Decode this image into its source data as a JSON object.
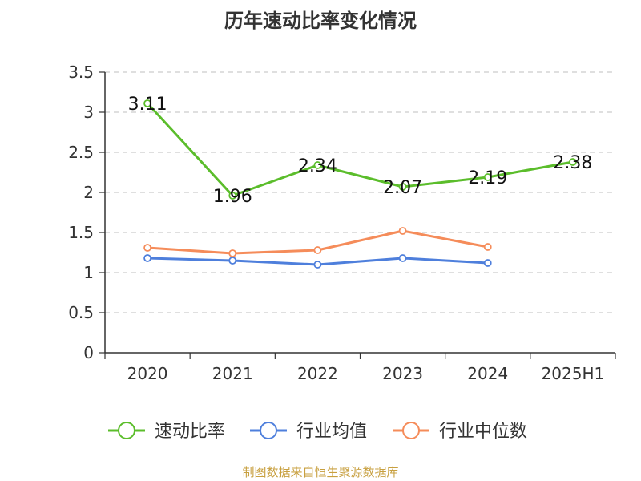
{
  "chart_data": {
    "type": "line",
    "title": "历年速动比率变化情况",
    "categories": [
      "2020",
      "2021",
      "2022",
      "2023",
      "2024",
      "2025H1"
    ],
    "ylim": [
      0,
      3.5
    ],
    "y_ticks": [
      "0",
      "0.5",
      "1",
      "1.5",
      "2",
      "2.5",
      "3",
      "3.5"
    ],
    "grid": true,
    "legend_position": "bottom",
    "series": [
      {
        "name": "速动比率",
        "color": "#5bbd2b",
        "values": [
          3.11,
          1.96,
          2.34,
          2.07,
          2.19,
          2.38
        ],
        "labels": [
          "3.11",
          "1.96",
          "2.34",
          "2.07",
          "2.19",
          "2.38"
        ]
      },
      {
        "name": "行业均值",
        "color": "#4e7fdc",
        "values": [
          1.18,
          1.15,
          1.1,
          1.18,
          1.12,
          null
        ]
      },
      {
        "name": "行业中位数",
        "color": "#f58c5a",
        "values": [
          1.31,
          1.24,
          1.28,
          1.52,
          1.32,
          null
        ]
      }
    ]
  },
  "source_text": "制图数据来自恒生聚源数据库"
}
